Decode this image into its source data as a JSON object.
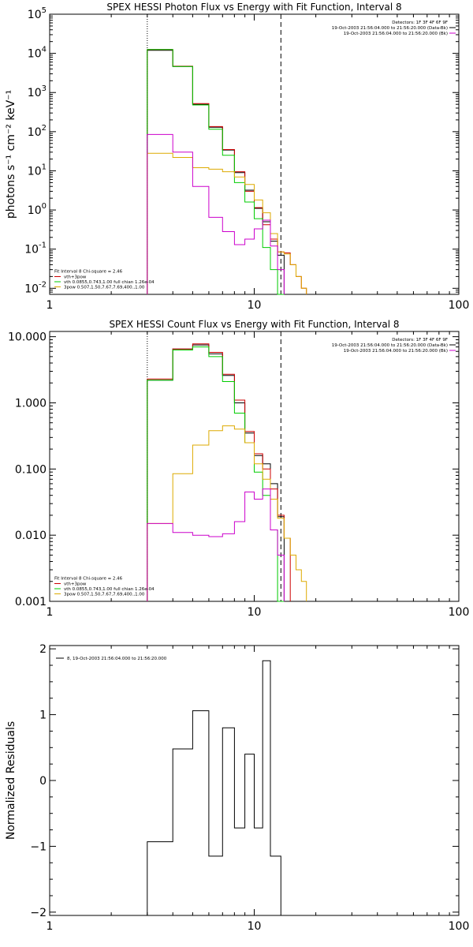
{
  "chart_data": [
    {
      "type": "line",
      "title": "SPEX HESSI Photon Flux vs Energy with Fit Function, Interval 8",
      "xlabel": "",
      "ylabel": "photons s⁻¹ cm⁻² keV⁻¹",
      "xscale": "log",
      "yscale": "log",
      "xlim": [
        1,
        100
      ],
      "ylim": [
        0.007,
        100000
      ],
      "x_ticks": [
        {
          "v": 1,
          "label": "1"
        },
        {
          "v": 10,
          "label": "10"
        },
        {
          "v": 100,
          "label": "100"
        }
      ],
      "y_ticks": [
        {
          "v": 100000,
          "m": "10",
          "e": "5"
        },
        {
          "v": 10000,
          "m": "10",
          "e": "4"
        },
        {
          "v": 1000,
          "m": "10",
          "e": "3"
        },
        {
          "v": 100,
          "m": "10",
          "e": "2"
        },
        {
          "v": 10,
          "m": "10",
          "e": "1"
        },
        {
          "v": 1,
          "m": "10",
          "e": "0"
        },
        {
          "v": 0.1,
          "m": "10",
          "e": "-1"
        },
        {
          "v": 0.01,
          "m": "10",
          "e": "-2"
        }
      ],
      "vlines": [
        {
          "x": 3.0,
          "style": "dotted"
        },
        {
          "x": 13.5,
          "style": "dashed"
        }
      ],
      "legend_tr": [
        "Detectors: 1F 3F 4F 6F 9F",
        "19-Oct-2003 21:56:04.000 to 21:56:20.000 (Data-Bk)",
        "19-Oct-2003 21:56:04.000 to 21:56:20.000 (Bk)"
      ],
      "legend_tr_colors": [
        "",
        "#000000",
        "#cc00cc"
      ],
      "legend_bl_title": "Fit Interval 8    Chi-square = 2.46",
      "legend_bl": [
        {
          "name": "vth+3pow",
          "color": "#cc0000"
        },
        {
          "name": "vth 0.0855,0.743,1.00  full chian 1.26e-04",
          "color": "#00cc00"
        },
        {
          "name": "3pow 0.507,1.50,7.67,7.69,400.,1.00",
          "color": "#ddaa00"
        }
      ],
      "bin_edges": [
        3,
        4,
        5,
        6,
        7,
        8,
        9,
        10,
        11,
        12,
        13,
        14,
        15,
        16,
        17,
        18
      ],
      "series": [
        {
          "name": "Data-Bk",
          "color": "#000000",
          "values": [
            12000,
            4600,
            500,
            130,
            34,
            9,
            3.2,
            1.1,
            0.5,
            0.16,
            0.07,
            null,
            null,
            null,
            null
          ]
        },
        {
          "name": "vth+3pow",
          "color": "#cc0000",
          "values": [
            12500,
            4700,
            520,
            135,
            35,
            9.5,
            3.0,
            1.15,
            0.42,
            0.18,
            0.085,
            0.08,
            0.04,
            0.02,
            0.01
          ]
        },
        {
          "name": "vth",
          "color": "#00cc00",
          "values": [
            12500,
            4600,
            480,
            115,
            25,
            5,
            1.6,
            0.6,
            0.11,
            0.03,
            0.004,
            null,
            null,
            null,
            null
          ]
        },
        {
          "name": "3pow",
          "color": "#ddaa00",
          "values": [
            28,
            22,
            12,
            11,
            9.5,
            7,
            4.5,
            1.8,
            0.85,
            0.25,
            0.085,
            0.075,
            0.04,
            0.02,
            0.01
          ]
        },
        {
          "name": "Bk",
          "color": "#cc00cc",
          "values": [
            85,
            30,
            4,
            0.65,
            0.28,
            0.13,
            0.18,
            0.33,
            0.55,
            0.12,
            0.03,
            null,
            null,
            null,
            null
          ]
        }
      ]
    },
    {
      "type": "line",
      "title": "SPEX HESSI Count Flux vs Energy with Fit Function, Interval 8",
      "xlabel": "",
      "ylabel": "",
      "xscale": "log",
      "yscale": "log",
      "xlim": [
        1,
        100
      ],
      "ylim": [
        0.001,
        12
      ],
      "x_ticks": [
        {
          "v": 1,
          "label": "1"
        },
        {
          "v": 10,
          "label": "10"
        },
        {
          "v": 100,
          "label": "100"
        }
      ],
      "y_ticks": [
        {
          "v": 10,
          "label": "10.000"
        },
        {
          "v": 1,
          "label": "1.000"
        },
        {
          "v": 0.1,
          "label": "0.100"
        },
        {
          "v": 0.01,
          "label": "0.010"
        },
        {
          "v": 0.001,
          "label": "0.001"
        }
      ],
      "vlines": [
        {
          "x": 3.0,
          "style": "dotted"
        },
        {
          "x": 13.5,
          "style": "dashed"
        }
      ],
      "legend_tr": [
        "Detectors: 1F 3F 4F 6F 9F",
        "19-Oct-2003 21:56:04.000 to 21:56:20.000 (Data-Bk)",
        "19-Oct-2003 21:56:04.000 to 21:56:20.000 (Bk)"
      ],
      "legend_tr_colors": [
        "",
        "#000000",
        "#cc00cc"
      ],
      "legend_bl_title": "Fit Interval 8    Chi-square = 2.46",
      "legend_bl": [
        {
          "name": "vth+3pow",
          "color": "#cc0000"
        },
        {
          "name": "vth 0.0855,0.743,1.00  full chian 1.26e-04",
          "color": "#00cc00"
        },
        {
          "name": "3pow 0.507,1.50,7.67,7.69,400.,1.00",
          "color": "#ddaa00"
        }
      ],
      "bin_edges": [
        3,
        4,
        5,
        6,
        7,
        8,
        9,
        10,
        11,
        12,
        13,
        14,
        15,
        16,
        17,
        18
      ],
      "series": [
        {
          "name": "Data-Bk",
          "color": "#000000",
          "values": [
            2.2,
            6.5,
            7.5,
            5.5,
            2.6,
            1.0,
            0.35,
            0.16,
            0.12,
            0.06,
            0.019,
            null,
            null,
            null,
            null
          ]
        },
        {
          "name": "vth+3pow",
          "color": "#cc0000",
          "values": [
            2.3,
            6.5,
            7.8,
            5.8,
            2.7,
            1.1,
            0.37,
            0.17,
            0.1,
            0.05,
            0.02,
            0.009,
            null,
            null,
            null
          ]
        },
        {
          "name": "vth",
          "color": "#00cc00",
          "values": [
            2.2,
            6.3,
            7.0,
            5.0,
            2.1,
            0.7,
            0.25,
            0.09,
            0.04,
            0.012,
            0.001,
            null,
            null,
            null,
            null
          ]
        },
        {
          "name": "3pow",
          "color": "#ddaa00",
          "values": [
            0.015,
            0.085,
            0.23,
            0.38,
            0.45,
            0.4,
            0.25,
            0.12,
            0.07,
            0.035,
            0.018,
            0.009,
            0.005,
            0.003,
            0.002
          ]
        },
        {
          "name": "Bk",
          "color": "#cc00cc",
          "values": [
            0.015,
            0.011,
            0.01,
            0.0095,
            0.0105,
            0.016,
            0.045,
            0.035,
            0.05,
            0.012,
            0.005,
            null,
            null,
            null,
            null
          ]
        }
      ]
    },
    {
      "type": "line",
      "title": "",
      "xlabel": "",
      "ylabel": "Normalized Residuals",
      "xscale": "log",
      "yscale": "linear",
      "xlim": [
        1,
        100
      ],
      "ylim": [
        -2.05,
        2.05
      ],
      "x_ticks": [
        {
          "v": 1,
          "label": "1"
        },
        {
          "v": 10,
          "label": "10"
        },
        {
          "v": 100,
          "label": "100"
        }
      ],
      "y_ticks": [
        {
          "v": 2,
          "label": "2"
        },
        {
          "v": 1,
          "label": "1"
        },
        {
          "v": 0,
          "label": "0"
        },
        {
          "v": -1,
          "label": "−1"
        },
        {
          "v": -2,
          "label": "−2"
        }
      ],
      "legend_tl": "8, 19-Oct-2003 21:56:04.000 to 21:56:20.000",
      "bin_edges": [
        3,
        4,
        5,
        6,
        7,
        8,
        9,
        10,
        11,
        12,
        13.5
      ],
      "series": [
        {
          "name": "",
          "color": "#000000",
          "values": [
            -0.93,
            0.48,
            1.06,
            -1.15,
            0.8,
            -0.72,
            0.4,
            -0.72,
            1.82,
            -1.15
          ]
        }
      ]
    }
  ]
}
